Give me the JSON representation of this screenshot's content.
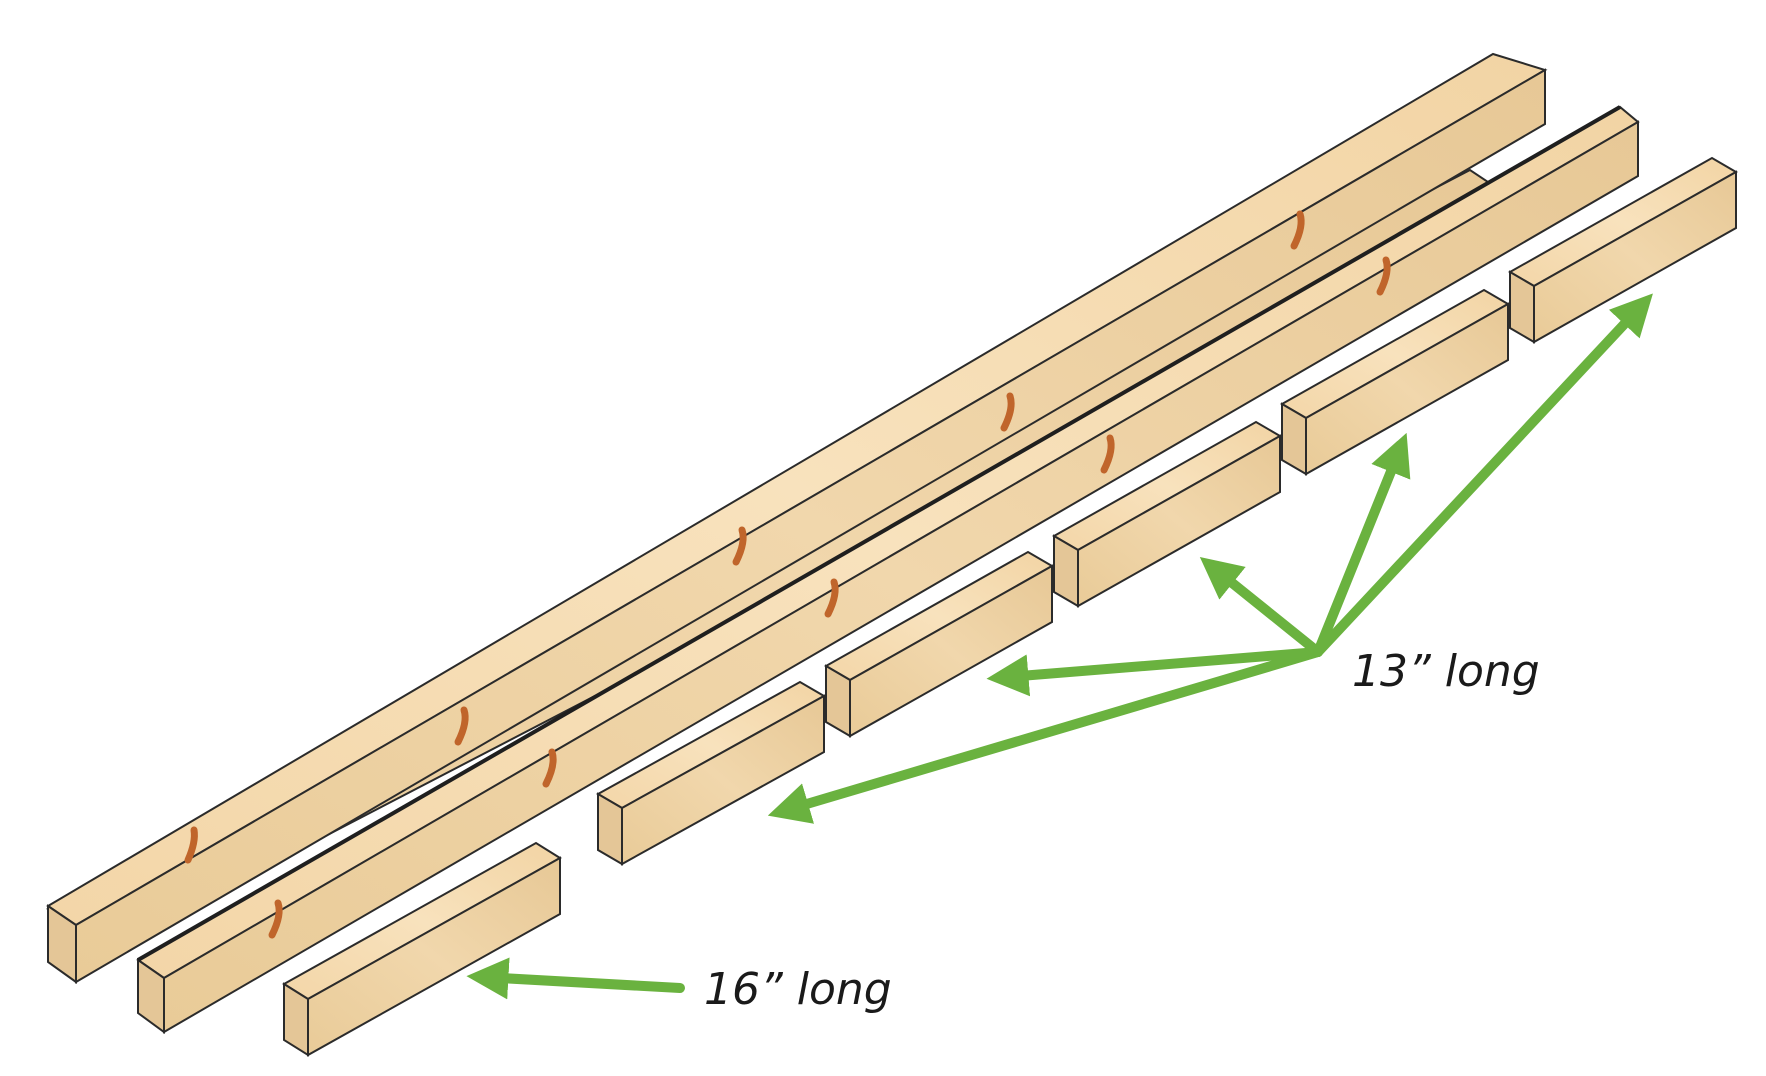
{
  "labels": {
    "short_pieces": "13” long",
    "end_piece": "16” long"
  },
  "colors": {
    "wood_top": "#f6dcb2",
    "wood_front": "#edd3a6",
    "wood_end": "#e6c99b",
    "wood_edge": "#2b2b2b",
    "knot": "#c0652b",
    "arrow": "#6ab23f"
  },
  "pieces": {
    "long_boards": 2,
    "short_pieces_count": 5,
    "end_piece_count": 1
  }
}
